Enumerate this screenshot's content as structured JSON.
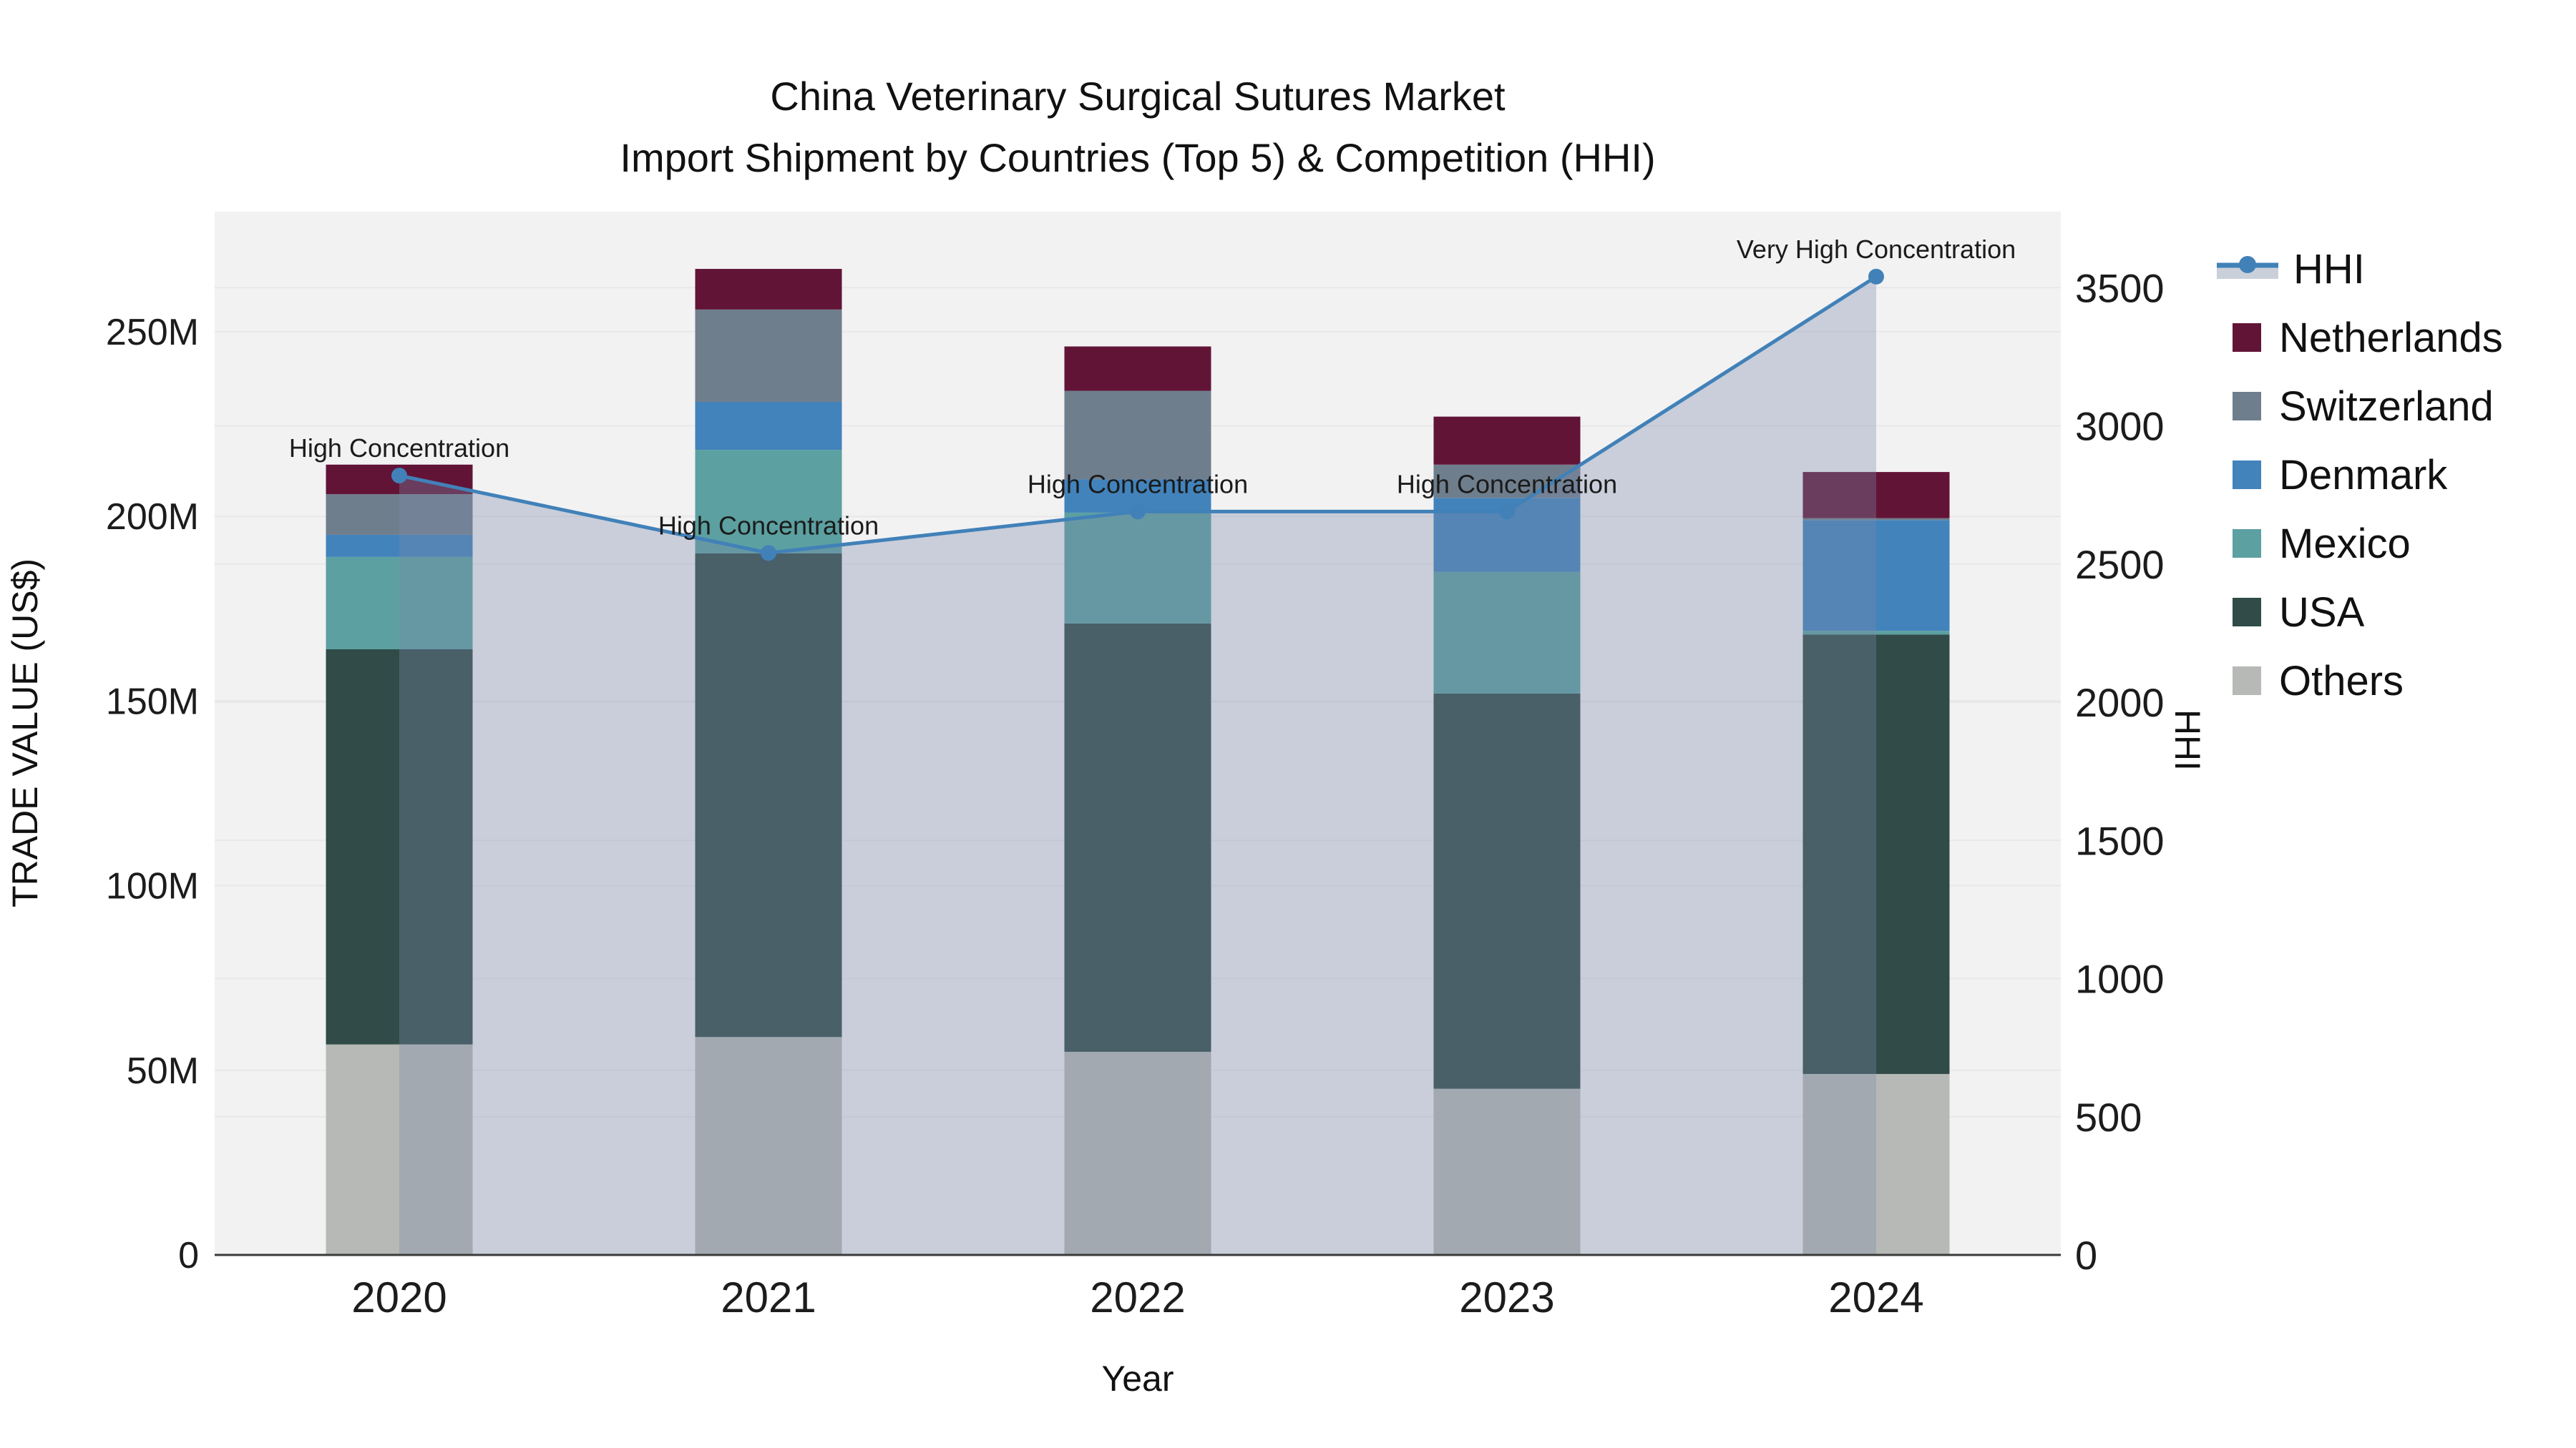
{
  "chart_data": {
    "type": "bar",
    "subtype": "stacked-bar-with-line",
    "title": "China Veterinary Surgical Sutures Market",
    "subtitle": "Import Shipment by Countries (Top 5) & Competition (HHI)",
    "xlabel": "Year",
    "ylabel_left": "TRADE VALUE (US$)",
    "ylabel_right": "HHI",
    "categories": [
      "2020",
      "2021",
      "2022",
      "2023",
      "2024"
    ],
    "value_unit": "Million US$",
    "series": [
      {
        "name": "Netherlands",
        "color": "#621437",
        "values": [
          8,
          11,
          12,
          13,
          12.5
        ]
      },
      {
        "name": "Switzerland",
        "color": "#6F7E8D",
        "values": [
          11,
          25,
          24,
          9,
          0.5
        ]
      },
      {
        "name": "Denmark",
        "color": "#4283BB",
        "values": [
          6,
          13,
          9,
          20,
          30
        ]
      },
      {
        "name": "Mexico",
        "color": "#5CA0A1",
        "values": [
          25,
          28,
          30,
          33,
          1
        ]
      },
      {
        "name": "USA",
        "color": "#304B48",
        "values": [
          107,
          131,
          116,
          107,
          119
        ]
      },
      {
        "name": "Others",
        "color": "#B6B9B5",
        "values": [
          57,
          59,
          55,
          45,
          49
        ]
      }
    ],
    "stack_order_bottom_to_top": [
      "Others",
      "USA",
      "Mexico",
      "Denmark",
      "Switzerland",
      "Netherlands"
    ],
    "bar_totals": [
      214,
      267,
      246,
      227,
      212
    ],
    "line_series": {
      "name": "HHI",
      "color": "#4181B8",
      "area_color": "rgba(122,139,170,0.34)",
      "values": [
        2820,
        2540,
        2690,
        2690,
        3540
      ]
    },
    "annotations": [
      "High Concentration",
      "High Concentration",
      "High Concentration",
      "High Concentration",
      "Very High Concentration"
    ],
    "y_left": {
      "tick_labels": [
        "0",
        "50M",
        "100M",
        "150M",
        "200M",
        "250M"
      ],
      "tick_values": [
        0,
        50,
        100,
        150,
        200,
        250
      ],
      "max": 282.5
    },
    "y_right": {
      "tick_labels": [
        "0",
        "500",
        "1000",
        "1500",
        "2000",
        "2500",
        "3000",
        "3500"
      ],
      "tick_values": [
        0,
        500,
        1000,
        1500,
        2000,
        2500,
        3000,
        3500
      ],
      "max": 3775
    },
    "legend_entries": [
      "HHI",
      "Netherlands",
      "Switzerland",
      "Denmark",
      "Mexico",
      "USA",
      "Others"
    ],
    "plot_bg_color": "#F2F2F3",
    "grid_color": "#E8E8EA",
    "axis_line_color": "#3A3A3A",
    "legend_position": "top-right-outside",
    "grid": "on"
  }
}
